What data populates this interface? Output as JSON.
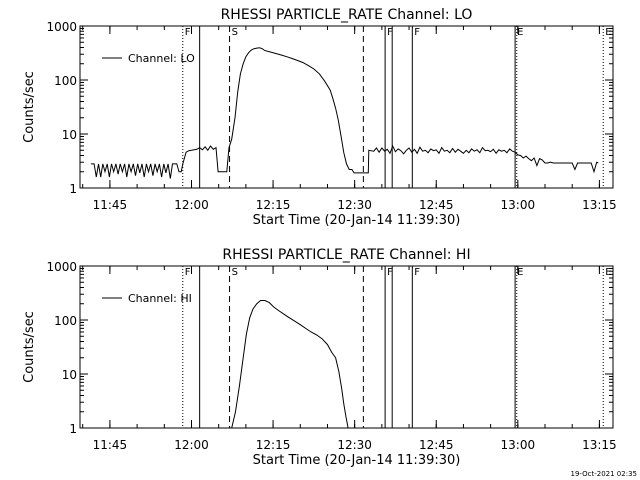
{
  "footer_timestamp": "19-Oct-2021 02:35",
  "colors": {
    "background": "#ffffff",
    "foreground": "#000000"
  },
  "chart_data": [
    {
      "type": "line",
      "title": "RHESSI PARTICLE_RATE Channel: LO",
      "xlabel": "Start Time (20-Jan-14 11:39:30)",
      "ylabel": "Counts/sec",
      "x_unit": "minutes since 11:39:30",
      "xlim": [
        0,
        98
      ],
      "ylim": [
        1,
        1000
      ],
      "yscale": "log",
      "grid": false,
      "legend": {
        "position": "top-left",
        "entries": [
          "Channel: LO"
        ]
      },
      "x_ticks": [
        {
          "label": "11:45",
          "x": 5.5
        },
        {
          "label": "12:00",
          "x": 20.5
        },
        {
          "label": "12:15",
          "x": 35.5
        },
        {
          "label": "12:30",
          "x": 50.5
        },
        {
          "label": "12:45",
          "x": 65.5
        },
        {
          "label": "13:00",
          "x": 80.5
        },
        {
          "label": "13:15",
          "x": 95.5
        }
      ],
      "y_ticks": [
        {
          "label": "1",
          "y": 1
        },
        {
          "label": "10",
          "y": 10
        },
        {
          "label": "100",
          "y": 100
        },
        {
          "label": "1000",
          "y": 1000
        }
      ],
      "event_markers": [
        {
          "label": "F",
          "x": 18.9,
          "style": "dotted"
        },
        {
          "label": "",
          "x": 22.0,
          "style": "solid"
        },
        {
          "label": "S",
          "x": 27.5,
          "style": "dashed"
        },
        {
          "label": "",
          "x": 52.1,
          "style": "dashed"
        },
        {
          "label": "F",
          "x": 56.1,
          "style": "solid"
        },
        {
          "label": "",
          "x": 57.4,
          "style": "solid"
        },
        {
          "label": "F",
          "x": 61.1,
          "style": "solid"
        },
        {
          "label": "E",
          "x": 80.0,
          "style": "solid"
        },
        {
          "label": "",
          "x": 80.3,
          "style": "dotted"
        },
        {
          "label": "E",
          "x": 96.2,
          "style": "dotted"
        }
      ],
      "series": [
        {
          "name": "Channel: LO",
          "x": [
            2.0,
            2.6,
            3.0,
            3.4,
            3.8,
            4.2,
            4.6,
            5.0,
            5.4,
            5.8,
            6.2,
            6.6,
            7.0,
            7.4,
            7.8,
            8.2,
            8.6,
            9.0,
            9.4,
            9.8,
            10.2,
            10.6,
            11.0,
            11.4,
            11.8,
            12.2,
            12.6,
            13.0,
            13.4,
            13.8,
            14.2,
            14.6,
            15.0,
            15.4,
            15.8,
            16.2,
            16.6,
            17.0,
            17.4,
            17.8,
            18.2,
            18.6,
            18.9,
            19.5,
            20.0,
            20.5,
            21.0,
            21.5,
            22.0,
            22.5,
            23.0,
            23.5,
            24.0,
            24.5,
            25.0,
            25.4,
            25.8,
            26.2,
            26.6,
            27.0,
            27.4,
            27.9,
            28.5,
            29.0,
            29.5,
            30.0,
            30.5,
            31.0,
            31.5,
            32.0,
            32.5,
            33.0,
            33.5,
            34.0,
            35.0,
            36.0,
            37.0,
            38.0,
            39.0,
            40.0,
            41.0,
            42.0,
            43.0,
            44.0,
            45.0,
            46.0,
            46.5,
            47.0,
            47.5,
            48.0,
            48.5,
            49.0,
            49.5,
            50.0,
            50.4,
            50.8,
            51.2,
            51.4,
            51.7,
            52.0,
            53.0,
            53.1,
            54.0,
            54.5,
            55.0,
            55.5,
            56.0,
            56.5,
            57.0,
            57.5,
            58.0,
            58.5,
            59.0,
            59.5,
            60.0,
            60.5,
            61.0,
            61.5,
            62.0,
            62.5,
            63.0,
            63.5,
            64.0,
            64.5,
            65.0,
            65.5,
            66.0,
            66.5,
            67.0,
            67.5,
            68.0,
            68.5,
            69.0,
            69.5,
            70.0,
            70.5,
            71.0,
            71.5,
            72.0,
            72.5,
            73.0,
            73.5,
            74.0,
            74.5,
            75.0,
            75.5,
            76.0,
            76.5,
            77.0,
            77.5,
            78.0,
            78.5,
            79.0,
            79.5,
            80.0,
            80.5,
            81.0,
            81.5,
            82.0,
            82.5,
            83.0,
            83.5,
            84.0,
            84.5,
            85.0,
            85.5,
            86.0,
            86.5,
            87.0,
            87.5,
            88.0,
            88.5,
            89.0,
            89.5,
            90.0,
            90.5,
            91.0,
            91.5,
            92.0,
            92.5,
            93.0,
            93.5,
            94.0,
            94.5,
            95.0,
            95.3
          ],
          "y": [
            2.8,
            2.8,
            1.6,
            2.8,
            1.6,
            2.8,
            2.0,
            2.8,
            1.6,
            2.8,
            2.0,
            2.8,
            1.8,
            2.8,
            2.0,
            2.8,
            1.6,
            2.8,
            2.0,
            2.8,
            1.7,
            2.8,
            1.9,
            2.8,
            1.6,
            2.8,
            2.0,
            2.8,
            1.7,
            2.8,
            2.0,
            2.8,
            1.6,
            2.8,
            1.9,
            2.8,
            1.5,
            2.8,
            2.8,
            2.8,
            2.0,
            2.0,
            2.8,
            4.6,
            4.9,
            5.0,
            5.1,
            5.2,
            5.6,
            5.1,
            5.8,
            5.0,
            6.0,
            5.2,
            5.6,
            2.0,
            2.0,
            2.0,
            2.0,
            2.0,
            5.6,
            8.0,
            20.0,
            60.0,
            130.0,
            200.0,
            270.0,
            320.0,
            360.0,
            380.0,
            390.0,
            395.0,
            380.0,
            350.0,
            330.0,
            310.0,
            290.0,
            270.0,
            250.0,
            230.0,
            210.0,
            185.0,
            160.0,
            130.0,
            95.0,
            65.0,
            45.0,
            30.0,
            18.0,
            9.0,
            4.5,
            2.8,
            2.2,
            2.2,
            1.9,
            1.9,
            1.9,
            1.9,
            1.9,
            1.9,
            1.9,
            5.0,
            4.8,
            5.5,
            4.6,
            5.5,
            4.8,
            5.2,
            4.4,
            6.0,
            4.7,
            5.3,
            4.9,
            4.3,
            5.0,
            5.5,
            4.6,
            5.2,
            4.4,
            5.7,
            4.8,
            5.0,
            4.5,
            5.3,
            4.9,
            5.1,
            4.4,
            5.6,
            4.8,
            5.0,
            4.5,
            5.4,
            4.6,
            5.2,
            4.8,
            4.4,
            5.0,
            4.5,
            5.3,
            4.8,
            5.1,
            4.5,
            5.6,
            4.9,
            5.0,
            4.7,
            5.2,
            4.4,
            5.1,
            4.8,
            5.0,
            4.5,
            5.3,
            4.8,
            4.6,
            4.1,
            4.0,
            3.6,
            3.9,
            3.5,
            3.2,
            3.6,
            2.6,
            3.5,
            3.3,
            2.9,
            2.9,
            3.0,
            2.9,
            2.9,
            2.9,
            2.9,
            2.9,
            2.9,
            2.9,
            2.9,
            2.2,
            2.9,
            2.9,
            2.9,
            2.9,
            2.9,
            2.9,
            2.0,
            3.0,
            2.9
          ]
        }
      ]
    },
    {
      "type": "line",
      "title": "RHESSI PARTICLE_RATE Channel: HI",
      "xlabel": "Start Time (20-Jan-14 11:39:30)",
      "ylabel": "Counts/sec",
      "x_unit": "minutes since 11:39:30",
      "xlim": [
        0,
        98
      ],
      "ylim": [
        1,
        1000
      ],
      "yscale": "log",
      "grid": false,
      "legend": {
        "position": "top-left",
        "entries": [
          "Channel: HI"
        ]
      },
      "x_ticks": [
        {
          "label": "11:45",
          "x": 5.5
        },
        {
          "label": "12:00",
          "x": 20.5
        },
        {
          "label": "12:15",
          "x": 35.5
        },
        {
          "label": "12:30",
          "x": 50.5
        },
        {
          "label": "12:45",
          "x": 65.5
        },
        {
          "label": "13:00",
          "x": 80.5
        },
        {
          "label": "13:15",
          "x": 95.5
        }
      ],
      "y_ticks": [
        {
          "label": "1",
          "y": 1
        },
        {
          "label": "10",
          "y": 10
        },
        {
          "label": "100",
          "y": 100
        },
        {
          "label": "1000",
          "y": 1000
        }
      ],
      "event_markers": [
        {
          "label": "F",
          "x": 18.9,
          "style": "dotted"
        },
        {
          "label": "",
          "x": 22.0,
          "style": "solid"
        },
        {
          "label": "S",
          "x": 27.5,
          "style": "dashed"
        },
        {
          "label": "",
          "x": 52.1,
          "style": "dashed"
        },
        {
          "label": "F",
          "x": 56.1,
          "style": "solid"
        },
        {
          "label": "",
          "x": 57.4,
          "style": "solid"
        },
        {
          "label": "F",
          "x": 61.1,
          "style": "solid"
        },
        {
          "label": "E",
          "x": 80.0,
          "style": "solid"
        },
        {
          "label": "",
          "x": 80.3,
          "style": "dotted"
        },
        {
          "label": "E",
          "x": 96.2,
          "style": "dotted"
        }
      ],
      "series": [
        {
          "name": "Channel: HI",
          "x": [
            27.9,
            28.6,
            29.3,
            30.0,
            30.6,
            31.2,
            31.8,
            32.5,
            33.2,
            34.0,
            34.8,
            35.6,
            36.5,
            37.5,
            38.5,
            39.5,
            40.5,
            41.5,
            42.5,
            43.5,
            44.5,
            45.5,
            46.3,
            47.0,
            47.6,
            48.1,
            48.5,
            48.9,
            49.3
          ],
          "y": [
            1.0,
            2.0,
            6.0,
            20.0,
            55.0,
            110.0,
            160.0,
            200.0,
            230.0,
            230.0,
            210.0,
            175.0,
            150.0,
            128.0,
            110.0,
            95.0,
            82.0,
            70.0,
            60.0,
            53.0,
            45.0,
            35.0,
            25.0,
            20.0,
            11.0,
            5.5,
            2.8,
            1.6,
            1.0
          ]
        }
      ]
    }
  ]
}
